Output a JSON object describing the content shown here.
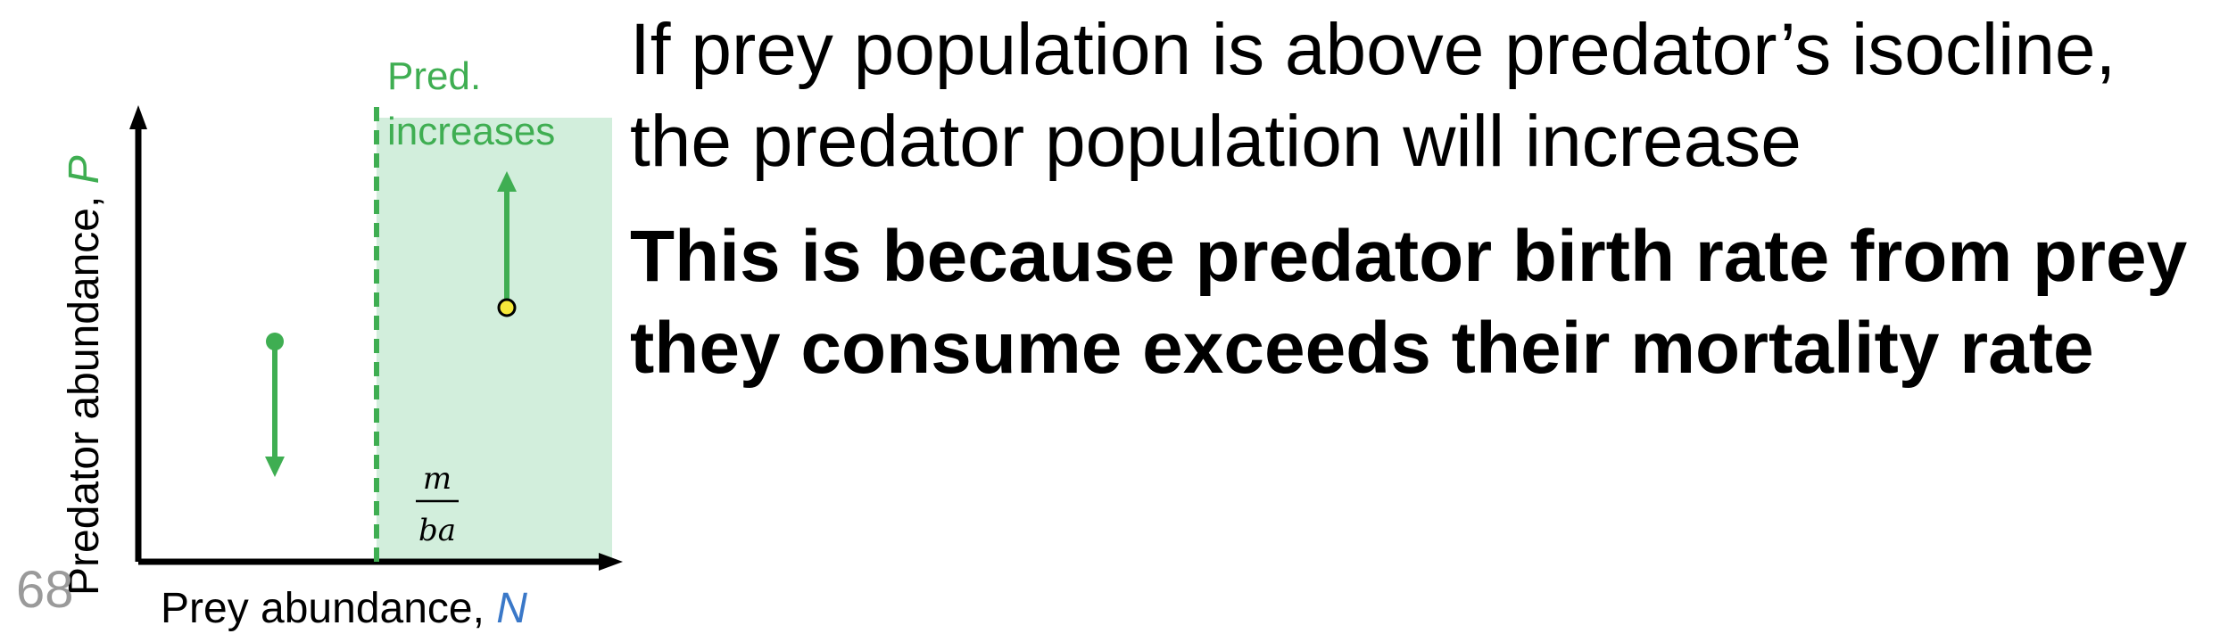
{
  "diagram": {
    "zone_label_line1": "Pred.",
    "zone_label_line2": "increases",
    "isocline_numerator": "m",
    "isocline_denominator": "ba",
    "x_axis_label": "Prey abundance, ",
    "x_axis_var": "N",
    "y_axis_label": "Predator abundance, ",
    "y_axis_var": "P",
    "colors": {
      "green": "#3fae52",
      "shade": "#d2eedc",
      "blue": "#3a78c8",
      "point_yellow": "#f6e83a",
      "axis": "#000000"
    }
  },
  "text": {
    "heading_line1": "If prey population is above predator’s isocline,",
    "heading_line2": "the predator population will increase",
    "bold_line1": "This is because predator birth rate from prey",
    "bold_line2": "they consume exceeds their mortality rate"
  },
  "slide": {
    "page_number": "68"
  }
}
